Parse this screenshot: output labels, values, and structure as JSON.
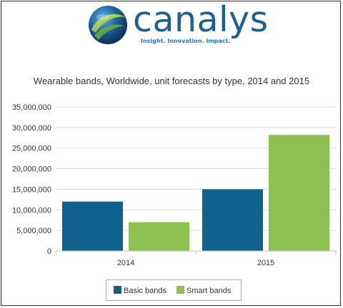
{
  "logo": {
    "wordmark": "canalys",
    "tagline": "Insight. Innovation. Impact."
  },
  "colors": {
    "brand_blue": "#1f5f8b",
    "series_basic": "#11618f",
    "series_smart": "#8dc152",
    "grid": "#d9d9d9"
  },
  "chart_data": {
    "type": "bar",
    "title": "Wearable bands, Worldwide, unit forecasts by type, 2014 and 2015",
    "xlabel": "",
    "ylabel": "",
    "categories": [
      "2014",
      "2015"
    ],
    "series": [
      {
        "name": "Basic bands",
        "color": "#11618f",
        "values": [
          12000000,
          15000000
        ]
      },
      {
        "name": "Smart bands",
        "color": "#8dc152",
        "values": [
          7000000,
          28200000
        ]
      }
    ],
    "ylim": [
      0,
      35000000
    ],
    "yticks": [
      0,
      5000000,
      10000000,
      15000000,
      20000000,
      25000000,
      30000000,
      35000000
    ],
    "ytick_labels": [
      "0",
      "5,000,000",
      "10,000,000",
      "15,000,000",
      "20,000,000",
      "25,000,000",
      "30,000,000",
      "35,000,000"
    ],
    "grid": true,
    "legend_position": "bottom"
  }
}
